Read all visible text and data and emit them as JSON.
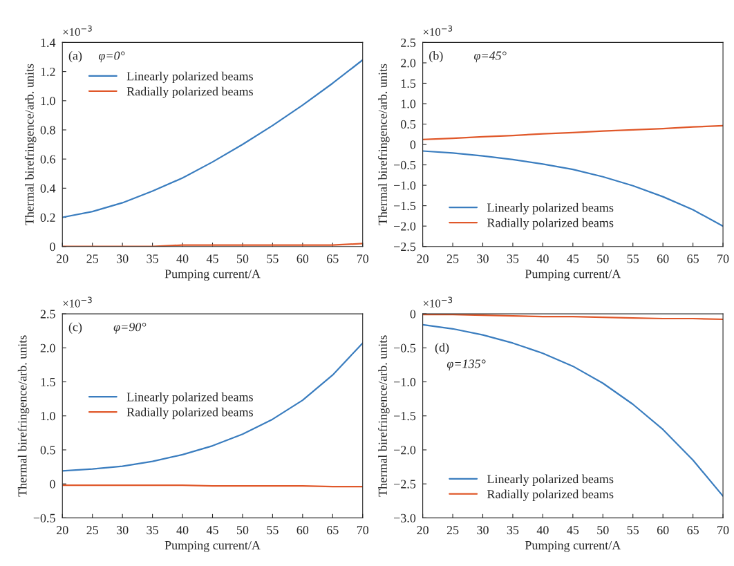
{
  "chart_data": [
    {
      "type": "line",
      "xlabel": "Pumping current/A",
      "ylabel": "Thermal birefringence/arb. units",
      "annotations": [
        "(a)",
        "φ=0°",
        "×10$^{−3}$"
      ],
      "x": [
        20,
        25,
        30,
        35,
        40,
        45,
        50,
        55,
        60,
        65,
        70
      ],
      "series": [
        {
          "name": "Linearly polarized beams",
          "color": "#3a7dbf",
          "values": [
            0.2,
            0.24,
            0.3,
            0.38,
            0.47,
            0.58,
            0.7,
            0.83,
            0.97,
            1.12,
            1.28
          ]
        },
        {
          "name": "Radially polarized beams",
          "color": "#e0582a",
          "values": [
            0,
            0,
            0,
            0,
            0.01,
            0.01,
            0.01,
            0.01,
            0.01,
            0.01,
            0.02
          ]
        }
      ],
      "xlim": [
        20,
        70
      ],
      "xticks": [
        20,
        25,
        30,
        35,
        40,
        45,
        50,
        55,
        60,
        65,
        70
      ],
      "ylim": [
        0,
        1.4
      ],
      "yticks": [
        0,
        0.2,
        0.4,
        0.6,
        0.8,
        {
          "value": 1,
          "label": "1.0"
        },
        1.2,
        1.4
      ],
      "legend": "top left",
      "grid": false
    },
    {
      "type": "line",
      "xlabel": "Pumping current/A",
      "ylabel": "Thermal birefringence/arb. units",
      "annotations": [
        "(b)",
        "φ=45°",
        "×10$^{−3}$"
      ],
      "x": [
        20,
        25,
        30,
        35,
        40,
        45,
        50,
        55,
        60,
        65,
        70
      ],
      "series": [
        {
          "name": "Linearly polarized beams",
          "color": "#3a7dbf",
          "values": [
            -0.16,
            -0.21,
            -0.28,
            -0.37,
            -0.48,
            -0.61,
            -0.79,
            -1.01,
            -1.28,
            -1.6,
            -2.0
          ]
        },
        {
          "name": "Radially polarized beams",
          "color": "#e0582a",
          "values": [
            0.12,
            0.15,
            0.19,
            0.22,
            0.26,
            0.29,
            0.33,
            0.36,
            0.39,
            0.43,
            0.46
          ]
        }
      ],
      "xlim": [
        20,
        70
      ],
      "xticks": [
        20,
        25,
        30,
        35,
        40,
        45,
        50,
        55,
        60,
        65,
        70
      ],
      "ylim": [
        -2.5,
        2.5
      ],
      "yticks": [
        {
          "value": -2.5,
          "label": "−2.5"
        },
        {
          "value": -2.0,
          "label": "−2.0"
        },
        {
          "value": -1.5,
          "label": "−1.5"
        },
        {
          "value": -1.0,
          "label": "−1.0"
        },
        {
          "value": -0.5,
          "label": "−0.5"
        },
        0,
        0.5,
        {
          "value": 1,
          "label": "1.0"
        },
        1.5,
        {
          "value": 2,
          "label": "2.0"
        },
        2.5
      ],
      "legend": "bottom left",
      "grid": false
    },
    {
      "type": "line",
      "xlabel": "Pumping current/A",
      "ylabel": "Thermal birefringence/arb. units",
      "annotations": [
        "(c)",
        "φ=90°",
        "×10$^{−3}$"
      ],
      "x": [
        20,
        25,
        30,
        35,
        40,
        45,
        50,
        55,
        60,
        65,
        70
      ],
      "series": [
        {
          "name": "Linearly polarized beams",
          "color": "#3a7dbf",
          "values": [
            0.19,
            0.22,
            0.26,
            0.33,
            0.43,
            0.56,
            0.73,
            0.95,
            1.23,
            1.6,
            2.07
          ]
        },
        {
          "name": "Radially polarized beams",
          "color": "#e0582a",
          "values": [
            -0.02,
            -0.02,
            -0.02,
            -0.02,
            -0.02,
            -0.03,
            -0.03,
            -0.03,
            -0.03,
            -0.04,
            -0.04
          ]
        }
      ],
      "xlim": [
        20,
        70
      ],
      "xticks": [
        20,
        25,
        30,
        35,
        40,
        45,
        50,
        55,
        60,
        65,
        70
      ],
      "ylim": [
        -0.5,
        2.5
      ],
      "yticks": [
        {
          "value": -0.5,
          "label": "−0.5"
        },
        0,
        0.5,
        {
          "value": 1,
          "label": "1.0"
        },
        1.5,
        {
          "value": 2,
          "label": "2.0"
        },
        2.5
      ],
      "legend": "left",
      "grid": false
    },
    {
      "type": "line",
      "xlabel": "Pumping current/A",
      "ylabel": "Thermal birefringence/arb. units",
      "annotations": [
        "(d)",
        "φ=135°",
        "×10$^{−3}$"
      ],
      "x": [
        20,
        25,
        30,
        35,
        40,
        45,
        50,
        55,
        60,
        65,
        70
      ],
      "series": [
        {
          "name": "Linearly polarized beams",
          "color": "#3a7dbf",
          "values": [
            -0.16,
            -0.22,
            -0.31,
            -0.43,
            -0.58,
            -0.77,
            -1.02,
            -1.33,
            -1.7,
            -2.15,
            -2.68
          ]
        },
        {
          "name": "Radially polarized beams",
          "color": "#e0582a",
          "values": [
            -0.01,
            -0.01,
            -0.02,
            -0.03,
            -0.04,
            -0.04,
            -0.05,
            -0.06,
            -0.07,
            -0.07,
            -0.08
          ]
        }
      ],
      "xlim": [
        20,
        70
      ],
      "xticks": [
        20,
        25,
        30,
        35,
        40,
        45,
        50,
        55,
        60,
        65,
        70
      ],
      "ylim": [
        -3.0,
        0
      ],
      "yticks": [
        {
          "value": -3.0,
          "label": "−3.0"
        },
        {
          "value": -2.5,
          "label": "−2.5"
        },
        {
          "value": -2.0,
          "label": "−2.0"
        },
        {
          "value": -1.5,
          "label": "−1.5"
        },
        {
          "value": -1.0,
          "label": "−1.0"
        },
        {
          "value": -0.5,
          "label": "−0.5"
        },
        0
      ],
      "legend": "bottom left",
      "grid": false
    }
  ]
}
